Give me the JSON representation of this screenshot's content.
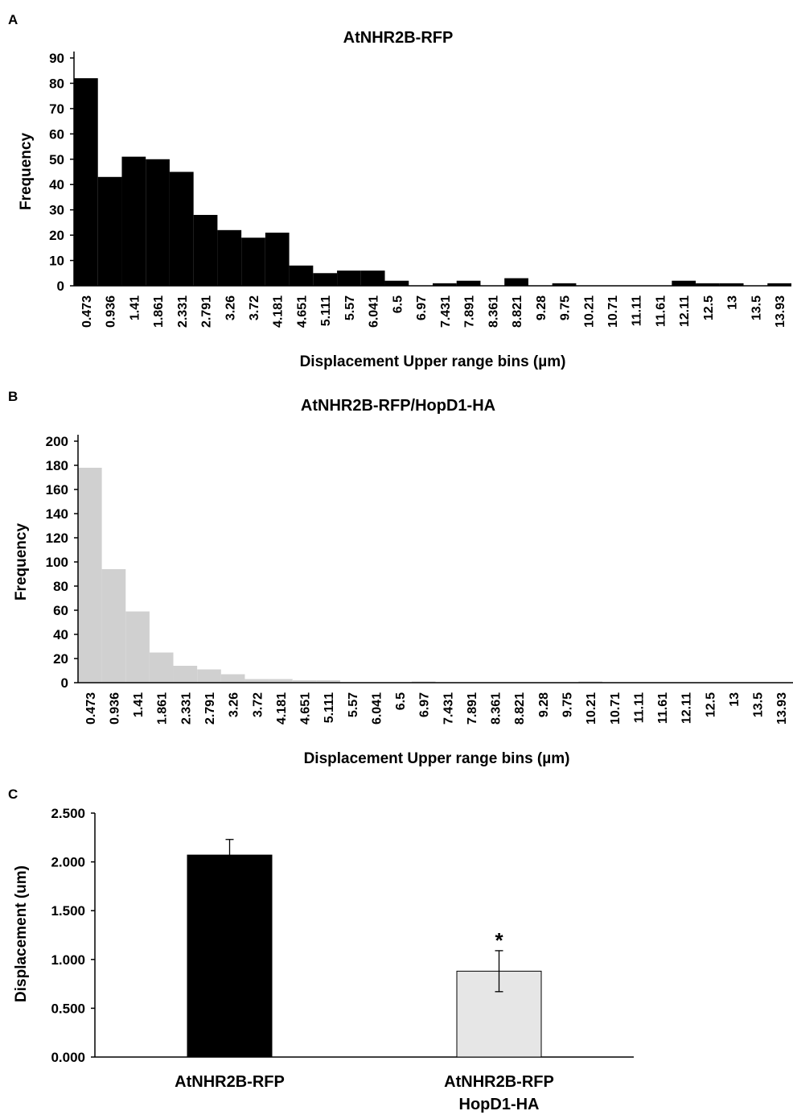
{
  "panels": {
    "a": "A",
    "b": "B",
    "c": "C"
  },
  "chart_data": [
    {
      "type": "bar",
      "title": "AtNHR2B-RFP",
      "xlabel": "Displacement Upper range bins (µm)",
      "ylabel": "Frequency",
      "ylim": [
        0,
        90
      ],
      "yticks": [
        "0",
        "10",
        "20",
        "30",
        "40",
        "50",
        "60",
        "70",
        "80",
        "90"
      ],
      "color": "#000000",
      "categories": [
        "0.473",
        "0.936",
        "1.41",
        "1.861",
        "2.331",
        "2.791",
        "3.26",
        "3.72",
        "4.181",
        "4.651",
        "5.111",
        "5.57",
        "6.041",
        "6.5",
        "6.97",
        "7.431",
        "7.891",
        "8.361",
        "8.821",
        "9.28",
        "9.75",
        "10.21",
        "10.71",
        "11.11",
        "11.61",
        "12.11",
        "12.5",
        "13",
        "13.5",
        "13.93"
      ],
      "values": [
        82,
        43,
        51,
        50,
        45,
        28,
        22,
        19,
        21,
        8,
        5,
        6,
        6,
        2,
        0,
        1,
        2,
        0,
        3,
        0,
        1,
        0,
        0,
        0,
        0,
        2,
        1,
        1,
        0,
        1
      ]
    },
    {
      "type": "bar",
      "title": "AtNHR2B-RFP/HopD1-HA",
      "xlabel": "Displacement Upper range bins (µm)",
      "ylabel": "Frequency",
      "ylim": [
        0,
        200
      ],
      "yticks": [
        "0",
        "20",
        "40",
        "60",
        "80",
        "100",
        "120",
        "140",
        "160",
        "180",
        "200"
      ],
      "color": "#d0d0d0",
      "categories": [
        "0.473",
        "0.936",
        "1.41",
        "1.861",
        "2.331",
        "2.791",
        "3.26",
        "3.72",
        "4.181",
        "4.651",
        "5.111",
        "5.57",
        "6.041",
        "6.5",
        "6.97",
        "7.431",
        "7.891",
        "8.361",
        "8.821",
        "9.28",
        "9.75",
        "10.21",
        "10.71",
        "11.11",
        "11.61",
        "12.11",
        "12.5",
        "13",
        "13.5",
        "13.93"
      ],
      "values": [
        178,
        94,
        59,
        25,
        14,
        11,
        7,
        3,
        3,
        2,
        2,
        0,
        0,
        0,
        1,
        0,
        0,
        0,
        0,
        0,
        0,
        1,
        0,
        0,
        0,
        0,
        0,
        0,
        0,
        0
      ]
    },
    {
      "type": "bar",
      "title": "",
      "xlabel": "",
      "ylabel": "Displacement (um)",
      "ylim": [
        0,
        2.5
      ],
      "yticks": [
        "0.000",
        "0.500",
        "1.000",
        "1.500",
        "2.000",
        "2.500"
      ],
      "categories": [
        {
          "line1": "AtNHR2B-RFP",
          "line2": ""
        },
        {
          "line1": "AtNHR2B-RFP",
          "line2": "HopD1-HA"
        }
      ],
      "values": [
        2.07,
        0.88
      ],
      "errors": [
        0.16,
        0.21
      ],
      "colors": [
        "#000000",
        "#e6e6e6"
      ],
      "annotation": "*"
    }
  ]
}
